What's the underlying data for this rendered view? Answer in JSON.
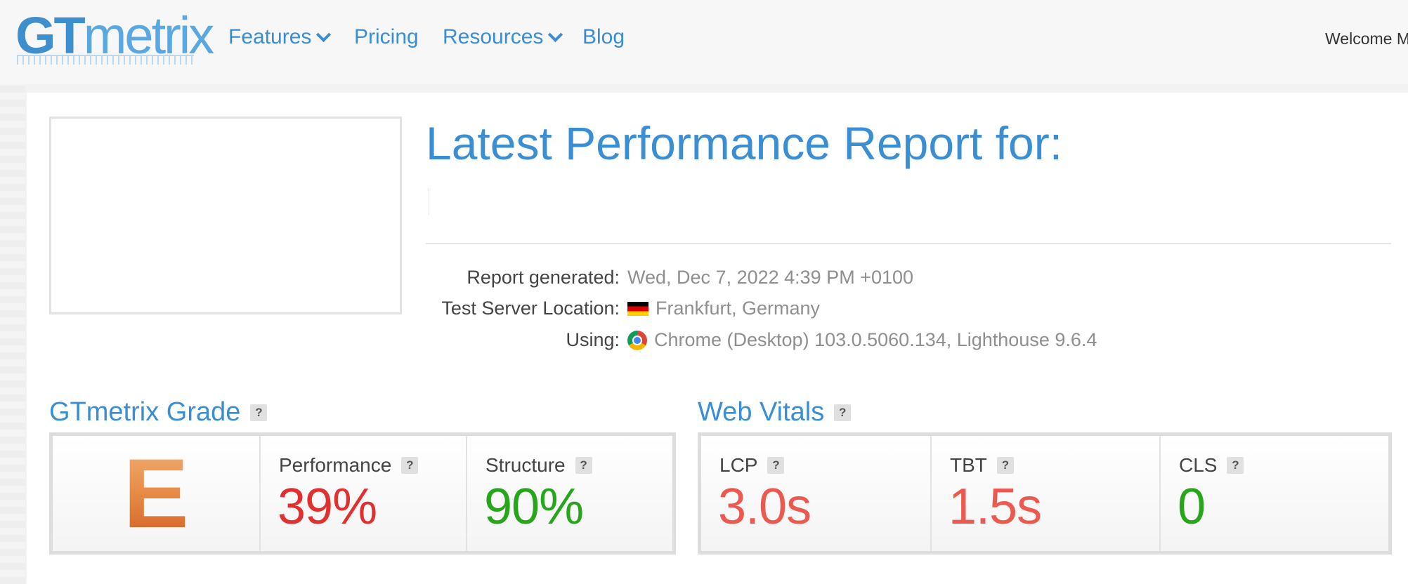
{
  "header": {
    "logo": {
      "gt": "GT",
      "rest": "metrix"
    },
    "nav": [
      {
        "label": "Features",
        "dropdown": true
      },
      {
        "label": "Pricing",
        "dropdown": false
      },
      {
        "label": "Resources",
        "dropdown": true
      },
      {
        "label": "Blog",
        "dropdown": false
      }
    ],
    "welcome": "Welcome Ma"
  },
  "report": {
    "title": "Latest Performance Report for:",
    "info": [
      {
        "label": "Report generated:",
        "value": "Wed, Dec 7, 2022 4:39 PM +0100",
        "icon": ""
      },
      {
        "label": "Test Server Location:",
        "value": "Frankfurt, Germany",
        "icon": "germany-flag-icon"
      },
      {
        "label": "Using:",
        "value": "Chrome (Desktop) 103.0.5060.134, Lighthouse 9.6.4",
        "icon": "chrome-icon"
      }
    ]
  },
  "grade": {
    "title": "GTmetrix Grade",
    "letter": "E",
    "performance": {
      "label": "Performance",
      "value": "39%",
      "color": "#e0302f"
    },
    "structure": {
      "label": "Structure",
      "value": "90%",
      "color": "#27a61c"
    }
  },
  "vitals": {
    "title": "Web Vitals",
    "lcp": {
      "label": "LCP",
      "value": "3.0s",
      "color": "#ec5a4f"
    },
    "tbt": {
      "label": "TBT",
      "value": "1.5s",
      "color": "#ec5a4f"
    },
    "cls": {
      "label": "CLS",
      "value": "0",
      "color": "#27a61c"
    }
  },
  "colors": {
    "brand": "#3a8ed3",
    "grade_e": "#e07a36"
  },
  "help_glyph": "?"
}
